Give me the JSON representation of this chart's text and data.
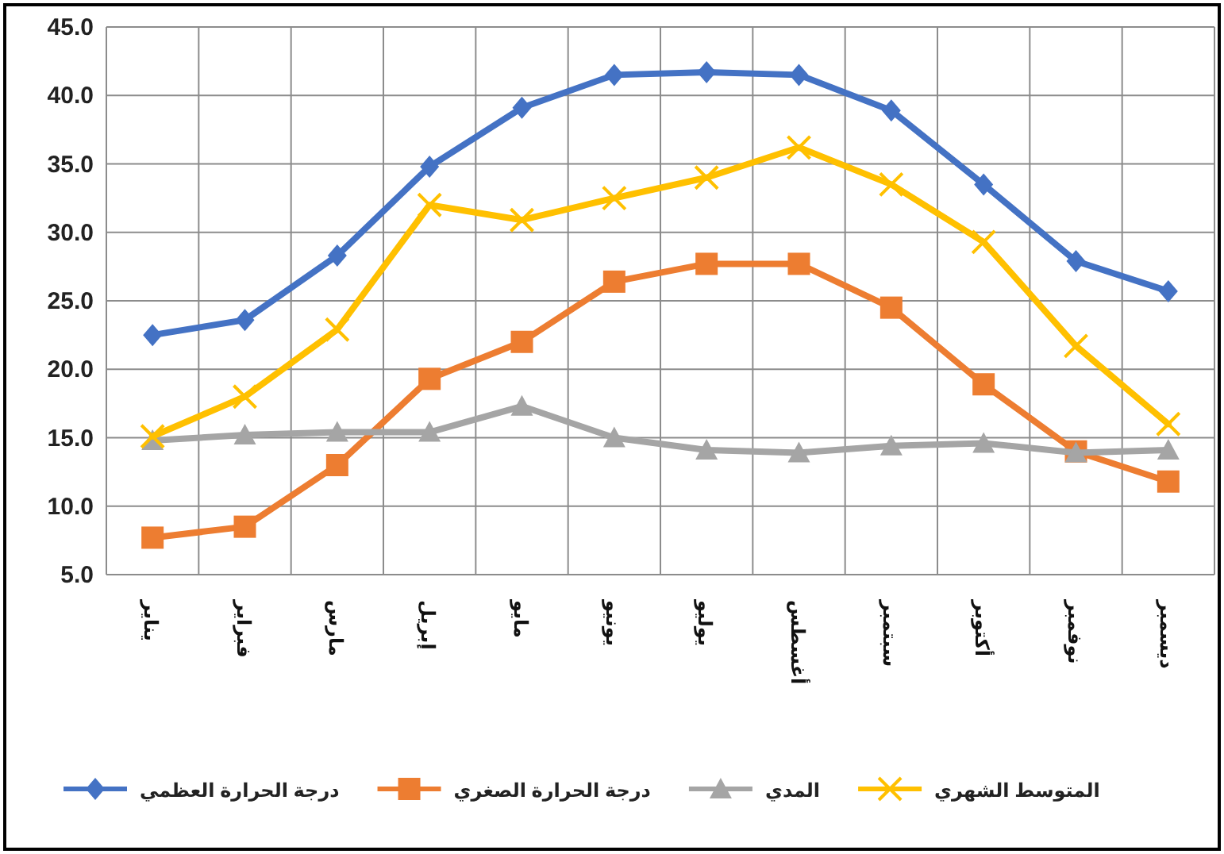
{
  "chart_data": {
    "type": "line",
    "categories": [
      "يناير",
      "فبراير",
      "مارس",
      "إبريل",
      "مايو",
      "يونيو",
      "يوليو",
      "أغسطس",
      "سبتمبر",
      "أكتوبر",
      "نوفمبر",
      "ديسمبر"
    ],
    "series": [
      {
        "name": "درجة الحرارة العظمي",
        "color": "#4472c4",
        "marker": "diamond",
        "values": [
          22.5,
          23.6,
          28.3,
          34.8,
          39.1,
          41.5,
          41.7,
          41.5,
          38.9,
          33.5,
          27.9,
          25.7
        ]
      },
      {
        "name": "درجة الحرارة الصغري",
        "color": "#ed7d31",
        "marker": "square",
        "values": [
          7.7,
          8.5,
          13.0,
          19.3,
          22.0,
          26.4,
          27.7,
          27.7,
          24.5,
          18.9,
          14.0,
          11.8
        ]
      },
      {
        "name": "المدي",
        "color": "#a5a5a5",
        "marker": "triangle",
        "values": [
          14.8,
          15.2,
          15.4,
          15.4,
          17.3,
          15.0,
          14.1,
          13.9,
          14.4,
          14.6,
          13.9,
          14.1
        ]
      },
      {
        "name": "المتوسط الشهري",
        "color": "#ffc000",
        "marker": "cross",
        "values": [
          15.1,
          18.0,
          22.9,
          32.0,
          30.9,
          32.5,
          34.0,
          36.2,
          33.5,
          29.3,
          21.7,
          16.0
        ]
      }
    ],
    "ylim": [
      5,
      45
    ],
    "yticks": [
      {
        "value": 5,
        "label": "5.0"
      },
      {
        "value": 10,
        "label": "10.0"
      },
      {
        "value": 15,
        "label": "15.0"
      },
      {
        "value": 20,
        "label": "20.0"
      },
      {
        "value": 25,
        "label": "25.0"
      },
      {
        "value": 30,
        "label": "30.0"
      },
      {
        "value": 35,
        "label": "35.0"
      },
      {
        "value": 40,
        "label": "40.0"
      },
      {
        "value": 45,
        "label": "45.0"
      }
    ],
    "grid": true,
    "legend": "bottom",
    "line_style": "solid"
  }
}
